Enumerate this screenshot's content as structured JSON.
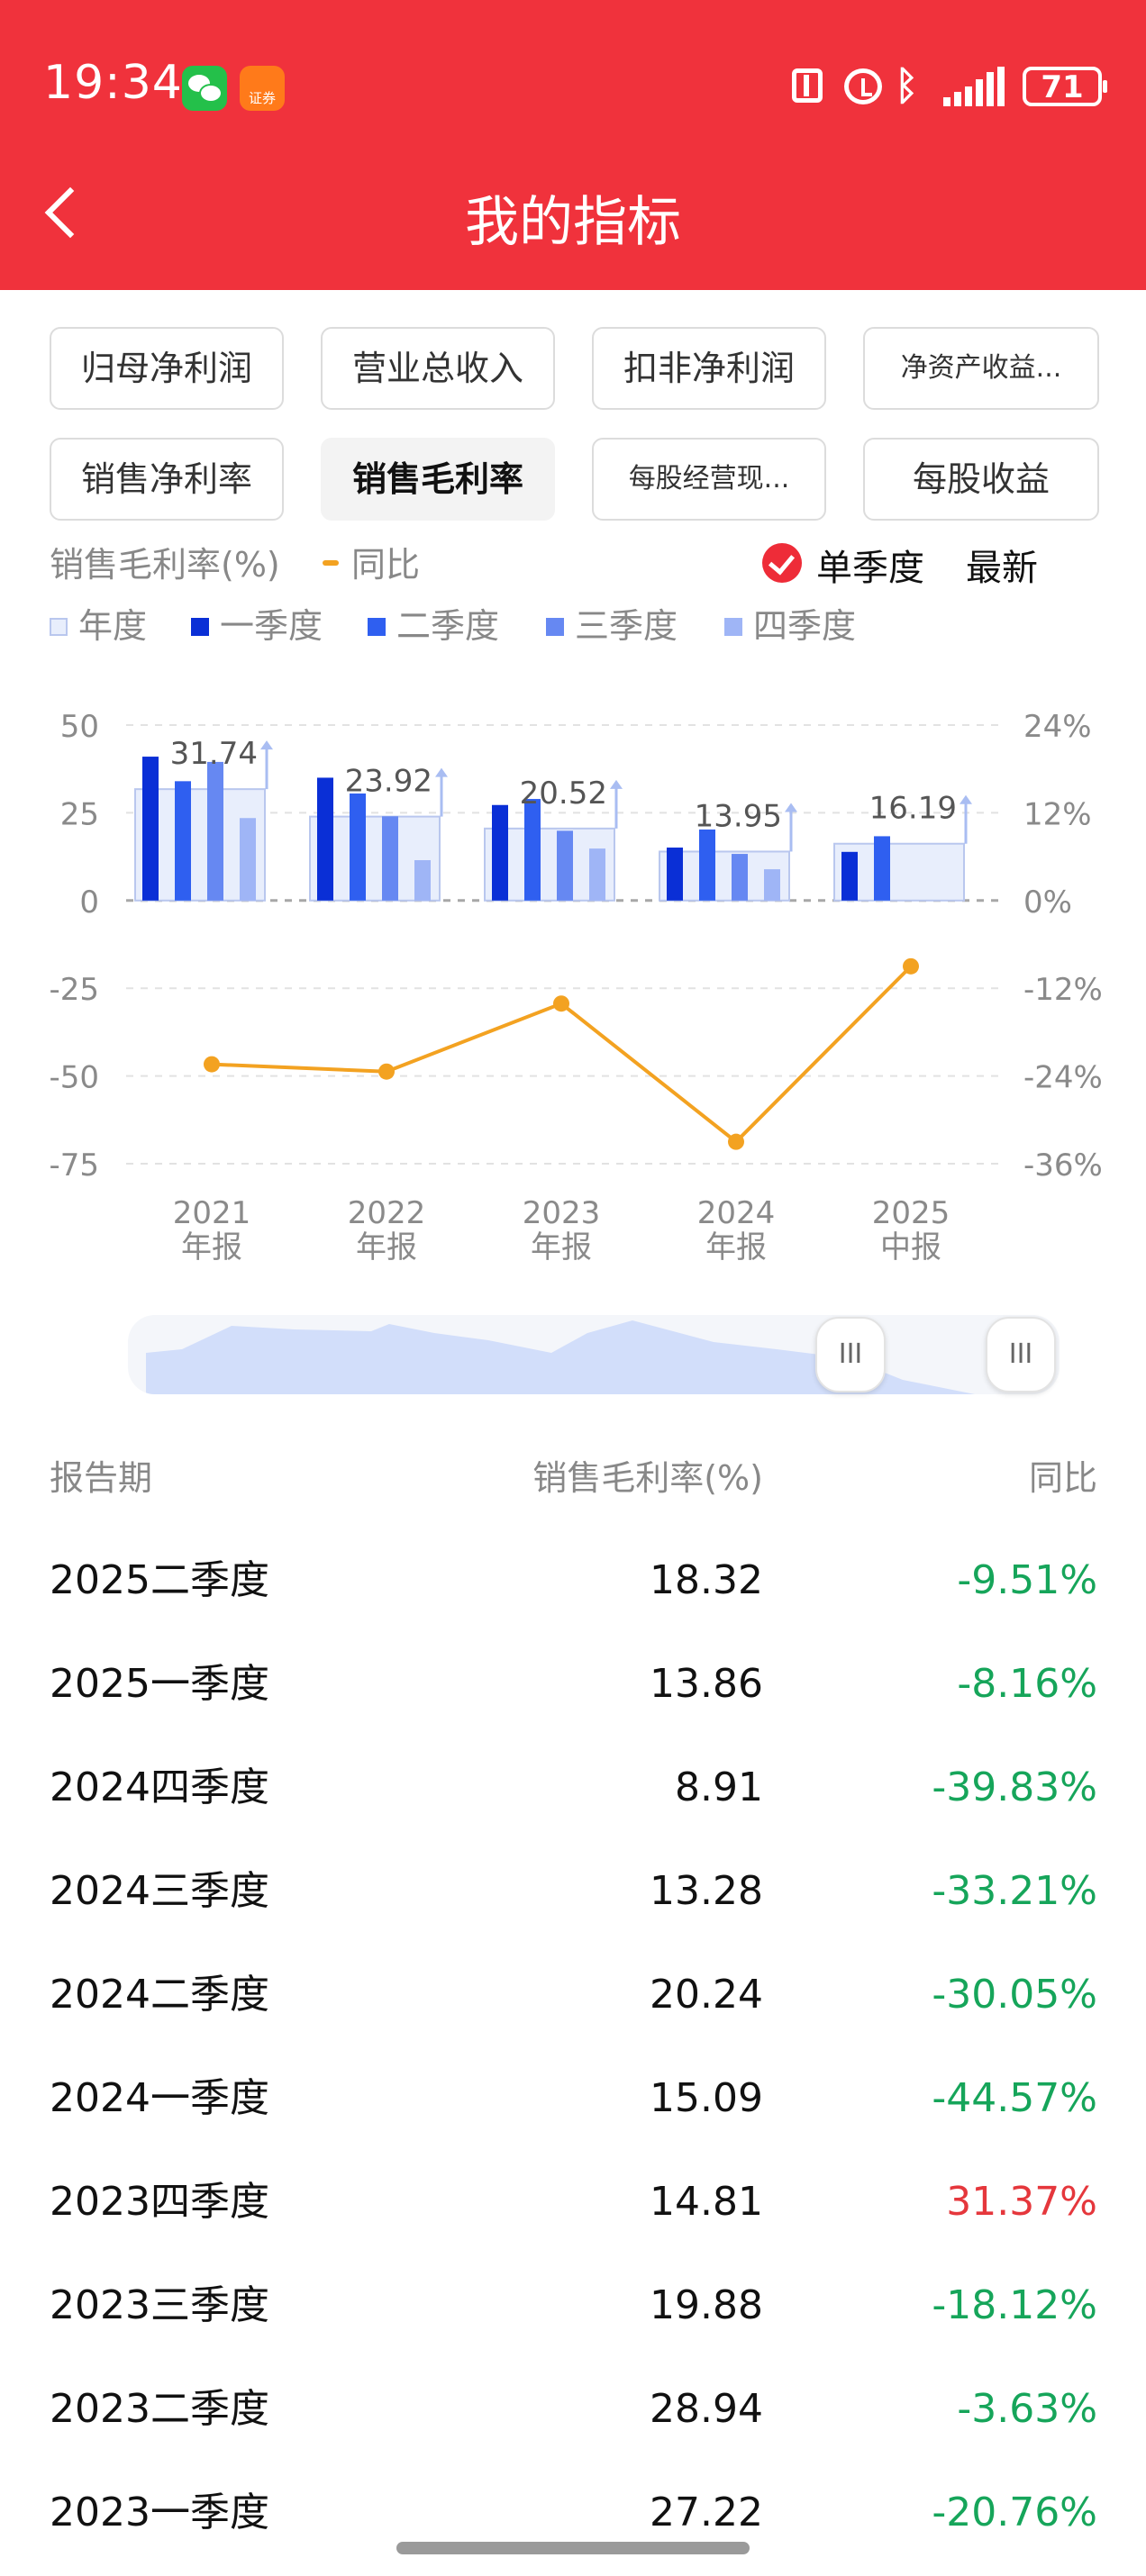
{
  "status_bar": {
    "time": "19:34",
    "broker_app_label": "证券",
    "battery": "71"
  },
  "header": {
    "title": "我的指标"
  },
  "indicator_tabs": [
    {
      "label": "归母净利润",
      "active": false
    },
    {
      "label": "营业总收入",
      "active": false
    },
    {
      "label": "扣非净利润",
      "active": false
    },
    {
      "label": "净资产收益...",
      "active": false
    },
    {
      "label": "销售净利率",
      "active": false
    },
    {
      "label": "销售毛利率",
      "active": true
    },
    {
      "label": "每股经营现...",
      "active": false
    },
    {
      "label": "每股收益",
      "active": false
    }
  ],
  "chart_header": {
    "metric_label": "销售毛利率(%)",
    "yoy_label": "同比",
    "single_quarter_label": "单季度",
    "latest_label": "最新"
  },
  "legend": [
    {
      "label": "年度",
      "color": "#e8eefc"
    },
    {
      "label": "一季度",
      "color": "#0a2fd6"
    },
    {
      "label": "二季度",
      "color": "#2f5ff0"
    },
    {
      "label": "三季度",
      "color": "#6688f2"
    },
    {
      "label": "四季度",
      "color": "#9fb5f6"
    }
  ],
  "chart_data": {
    "type": "bar",
    "categories": [
      "2021 年报",
      "2022 年报",
      "2023 年报",
      "2024 年报",
      "2025 中报"
    ],
    "category_lines": [
      [
        "2021",
        "年报"
      ],
      [
        "2022",
        "年报"
      ],
      [
        "2023",
        "年报"
      ],
      [
        "2024",
        "年报"
      ],
      [
        "2025",
        "中报"
      ]
    ],
    "series": [
      {
        "name": "年度",
        "values": [
          31.74,
          23.92,
          20.52,
          13.95,
          16.19
        ],
        "color": "#e8eefc"
      },
      {
        "name": "一季度",
        "values": [
          41,
          35,
          27.22,
          15.09,
          13.86
        ],
        "color": "#0a2fd6"
      },
      {
        "name": "二季度",
        "values": [
          34,
          30.5,
          28.94,
          20.24,
          18.32
        ],
        "color": "#2f5ff0"
      },
      {
        "name": "三季度",
        "values": [
          39.5,
          24,
          19.88,
          13.28,
          null
        ],
        "color": "#6688f2"
      },
      {
        "name": "四季度",
        "values": [
          23.5,
          11.5,
          14.81,
          8.91,
          null
        ],
        "color": "#9fb5f6"
      },
      {
        "name": "同比",
        "type": "line",
        "axis": "right",
        "values": [
          -22.4,
          -23.4,
          -14.1,
          -33.0,
          -9.0
        ],
        "color": "#f3a221"
      }
    ],
    "annual_labels": [
      "31.74",
      "23.92",
      "20.52",
      "13.95",
      "16.19"
    ],
    "left_axis": {
      "ylim": [
        -75,
        50
      ],
      "ticks": [
        "50",
        "25",
        "0",
        "-25",
        "-50",
        "-75"
      ],
      "tick_values": [
        50,
        25,
        0,
        -25,
        -50,
        -75
      ]
    },
    "right_axis": {
      "ylim": [
        -36,
        24
      ],
      "ticks": [
        "24%",
        "12%",
        "0%",
        "-12%",
        "-24%",
        "-36%"
      ],
      "tick_values": [
        24,
        12,
        0,
        -12,
        -24,
        -36
      ]
    },
    "grid": true
  },
  "range_selector": {
    "handle_glyph": "III",
    "selected_range": [
      0.76,
      0.98
    ]
  },
  "table": {
    "headers": {
      "period": "报告期",
      "value": "销售毛利率(%)",
      "yoy": "同比"
    },
    "rows": [
      {
        "period": "2025二季度",
        "value": "18.32",
        "yoy": "-9.51%",
        "trend": "neg"
      },
      {
        "period": "2025一季度",
        "value": "13.86",
        "yoy": "-8.16%",
        "trend": "neg"
      },
      {
        "period": "2024四季度",
        "value": "8.91",
        "yoy": "-39.83%",
        "trend": "neg"
      },
      {
        "period": "2024三季度",
        "value": "13.28",
        "yoy": "-33.21%",
        "trend": "neg"
      },
      {
        "period": "2024二季度",
        "value": "20.24",
        "yoy": "-30.05%",
        "trend": "neg"
      },
      {
        "period": "2024一季度",
        "value": "15.09",
        "yoy": "-44.57%",
        "trend": "neg"
      },
      {
        "period": "2023四季度",
        "value": "14.81",
        "yoy": "31.37%",
        "trend": "pos"
      },
      {
        "period": "2023三季度",
        "value": "19.88",
        "yoy": "-18.12%",
        "trend": "neg"
      },
      {
        "period": "2023二季度",
        "value": "28.94",
        "yoy": "-3.63%",
        "trend": "neg"
      },
      {
        "period": "2023一季度",
        "value": "27.22",
        "yoy": "-20.76%",
        "trend": "neg"
      }
    ]
  }
}
